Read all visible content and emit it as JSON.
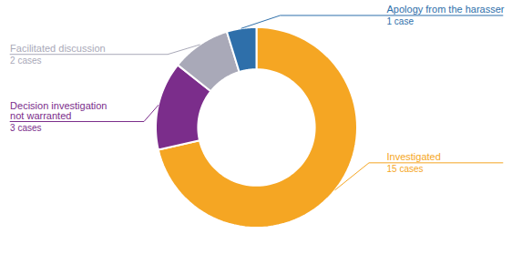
{
  "chart_data": {
    "type": "donut",
    "categories": [
      "Investigated",
      "Decision investigation not warranted",
      "Facilitated discussion",
      "Apology from the harasser"
    ],
    "values": [
      15,
      3,
      2,
      1
    ],
    "value_labels": [
      "15 cases",
      "3 cases",
      "2 cases",
      "1 case"
    ],
    "colors": [
      "#F5A623",
      "#7B2D8B",
      "#A9A9B8",
      "#2E6FAA"
    ],
    "data_labels": true
  }
}
